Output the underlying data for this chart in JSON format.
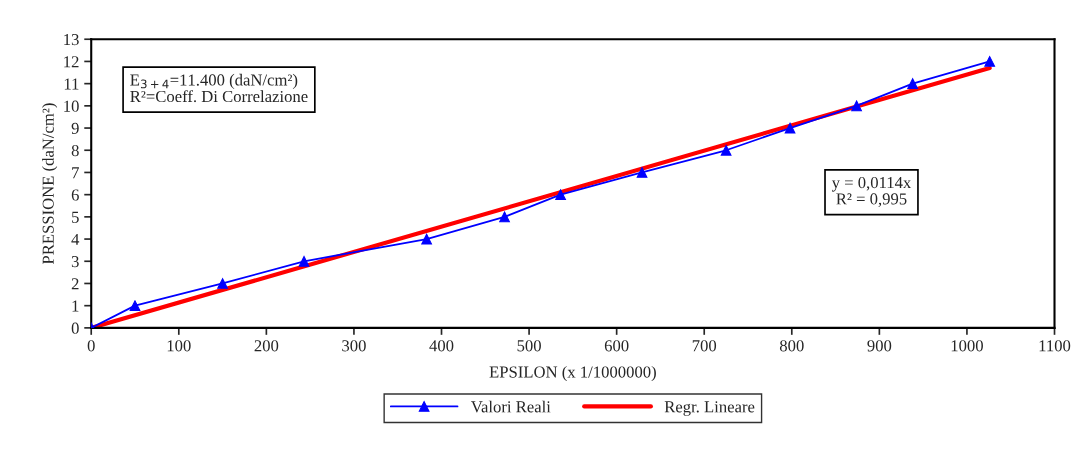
{
  "chart_data": {
    "type": "line",
    "xlabel": "EPSILON (x 1/1000000)",
    "ylabel": "PRESSIONE (daN/cm²)",
    "xlim": [
      0,
      1100
    ],
    "xticks": [
      0,
      100,
      200,
      300,
      400,
      500,
      600,
      700,
      800,
      900,
      1000,
      1100
    ],
    "ylim": [
      0,
      13
    ],
    "yticks": [
      0,
      1,
      2,
      3,
      4,
      5,
      6,
      7,
      8,
      9,
      10,
      11,
      12,
      13
    ],
    "grid": false,
    "legend": "bottom",
    "series": [
      {
        "name": "Valori Reali",
        "color": "#0000ff",
        "marker": "triangle",
        "x": [
          0,
          50,
          150,
          243,
          383,
          472,
          536,
          629,
          725,
          798,
          874,
          938,
          1026
        ],
        "values": [
          0,
          1,
          2,
          3,
          4,
          5,
          6,
          7,
          8,
          9,
          10,
          11,
          12
        ]
      },
      {
        "name": "Regr. Lineare",
        "color": "#ff0000",
        "marker": "none",
        "x": [
          0,
          1026
        ],
        "values": [
          0,
          11.7
        ]
      }
    ],
    "annotations": [
      "E$_{3+4}$=11.400 (daN/cm²)\nR²=Coeff. Di Correlazione",
      "y = 0,0114x\nR² = 0,995"
    ]
  }
}
